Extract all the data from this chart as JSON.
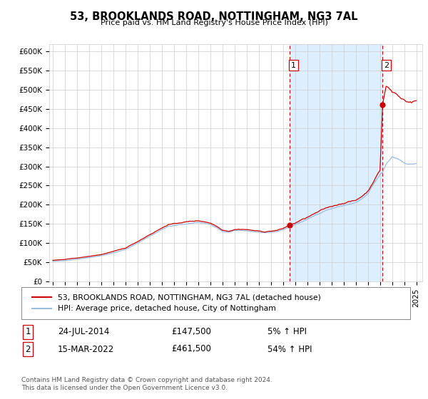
{
  "title": "53, BROOKLANDS ROAD, NOTTINGHAM, NG3 7AL",
  "subtitle": "Price paid vs. HM Land Registry's House Price Index (HPI)",
  "ylim": [
    0,
    620000
  ],
  "yticks": [
    0,
    50000,
    100000,
    150000,
    200000,
    250000,
    300000,
    350000,
    400000,
    450000,
    500000,
    550000,
    600000
  ],
  "ytick_labels": [
    "£0",
    "£50K",
    "£100K",
    "£150K",
    "£200K",
    "£250K",
    "£300K",
    "£350K",
    "£400K",
    "£450K",
    "£500K",
    "£550K",
    "£600K"
  ],
  "xlim_start": 1994.7,
  "xlim_end": 2025.5,
  "sale1_year": 2014.56,
  "sale1_price": 147500,
  "sale1_label": "1",
  "sale2_year": 2022.21,
  "sale2_price": 461500,
  "sale2_label": "2",
  "legend_line1": "53, BROOKLANDS ROAD, NOTTINGHAM, NG3 7AL (detached house)",
  "legend_line2": "HPI: Average price, detached house, City of Nottingham",
  "table_row1": [
    "1",
    "24-JUL-2014",
    "£147,500",
    "5% ↑ HPI"
  ],
  "table_row2": [
    "2",
    "15-MAR-2022",
    "£461,500",
    "54% ↑ HPI"
  ],
  "footer": "Contains HM Land Registry data © Crown copyright and database right 2024.\nThis data is licensed under the Open Government Licence v3.0.",
  "line_color_red": "#cc0000",
  "line_color_blue": "#99bbdd",
  "shade_color": "#ddeeff",
  "vline_color": "#cc0000",
  "dot_color_red": "#cc0000",
  "background_color": "#ffffff",
  "grid_color": "#cccccc"
}
